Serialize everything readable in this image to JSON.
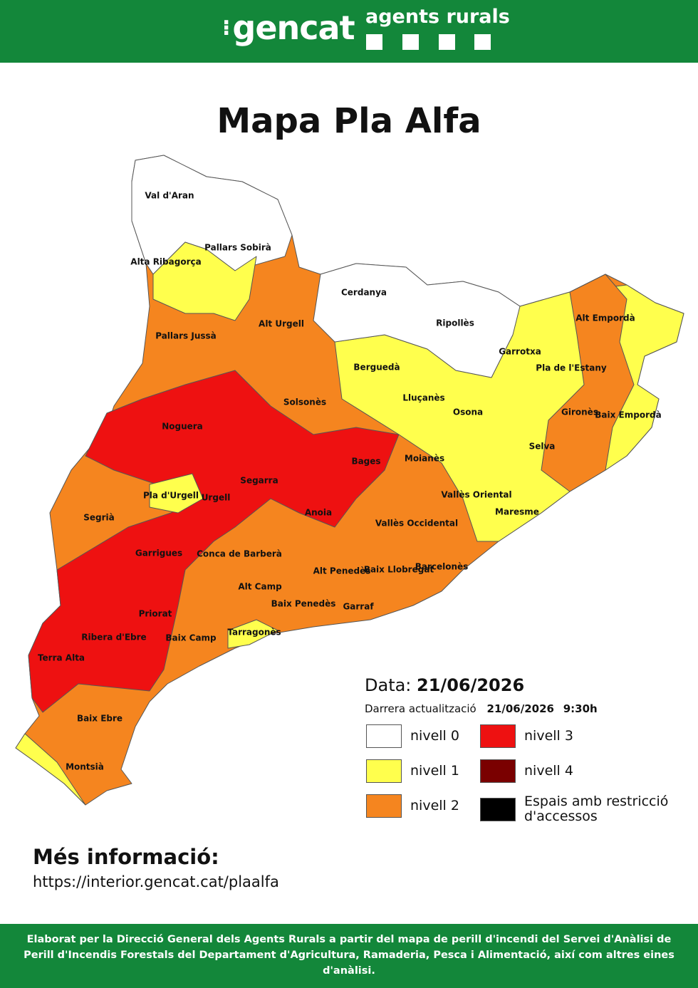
{
  "header": {
    "logo": "gencat",
    "brand": "agents rurals"
  },
  "title": "Mapa Pla Alfa",
  "map": {
    "regions": [
      "Val d'Aran",
      "Pallars Sobirà",
      "Alta Ribagorça",
      "Cerdanya",
      "Alt Urgell",
      "Pallars Jussà",
      "Ripollès",
      "Alt Empordà",
      "Garrotxa",
      "Berguedà",
      "Pla de l'Estany",
      "Solsonès",
      "Lluçanès",
      "Osona",
      "Gironès",
      "Baix Empordà",
      "Noguera",
      "Moianès",
      "Bages",
      "Selva",
      "Segarra",
      "Pla d'Urgell",
      "Urgell",
      "Vallès Oriental",
      "Anoia",
      "Segrià",
      "Maresme",
      "Vallès Occidental",
      "Garrigues",
      "Conca de Barberà",
      "Alt Penedès",
      "Baix Llobregat",
      "Barcelonès",
      "Alt Camp",
      "Baix Penedès",
      "Garraf",
      "Priorat",
      "Ribera d'Ebre",
      "Baix Camp",
      "Tarragonès",
      "Terra Alta",
      "Baix Ebre",
      "Montsià"
    ]
  },
  "info": {
    "date_label": "Data:",
    "date": "21/06/2026",
    "update_label": "Darrera actualització",
    "update_date": "21/06/2026",
    "update_time": "9:30h"
  },
  "legend": [
    {
      "label": "nivell 0",
      "color": "#ffffff"
    },
    {
      "label": "nivell 1",
      "color": "#ffff4d"
    },
    {
      "label": "nivell 2",
      "color": "#f5851f"
    },
    {
      "label": "nivell 3",
      "color": "#ee1111"
    },
    {
      "label": "nivell 4",
      "color": "#7a0000"
    },
    {
      "label": "Espais amb restricció d'accessos",
      "color": "#000000"
    }
  ],
  "more_info": {
    "heading": "Més informació:",
    "url": "https://interior.gencat.cat/plaalfa"
  },
  "footer": "Elaborat per la Direcció General dels Agents Rurals a partir del mapa de perill d'incendi del Servei d'Anàlisi de Perill d'Incendis Forestals del Departament d'Agricultura, Ramaderia, Pesca i Alimentació, així com altres eines d'anàlisi."
}
